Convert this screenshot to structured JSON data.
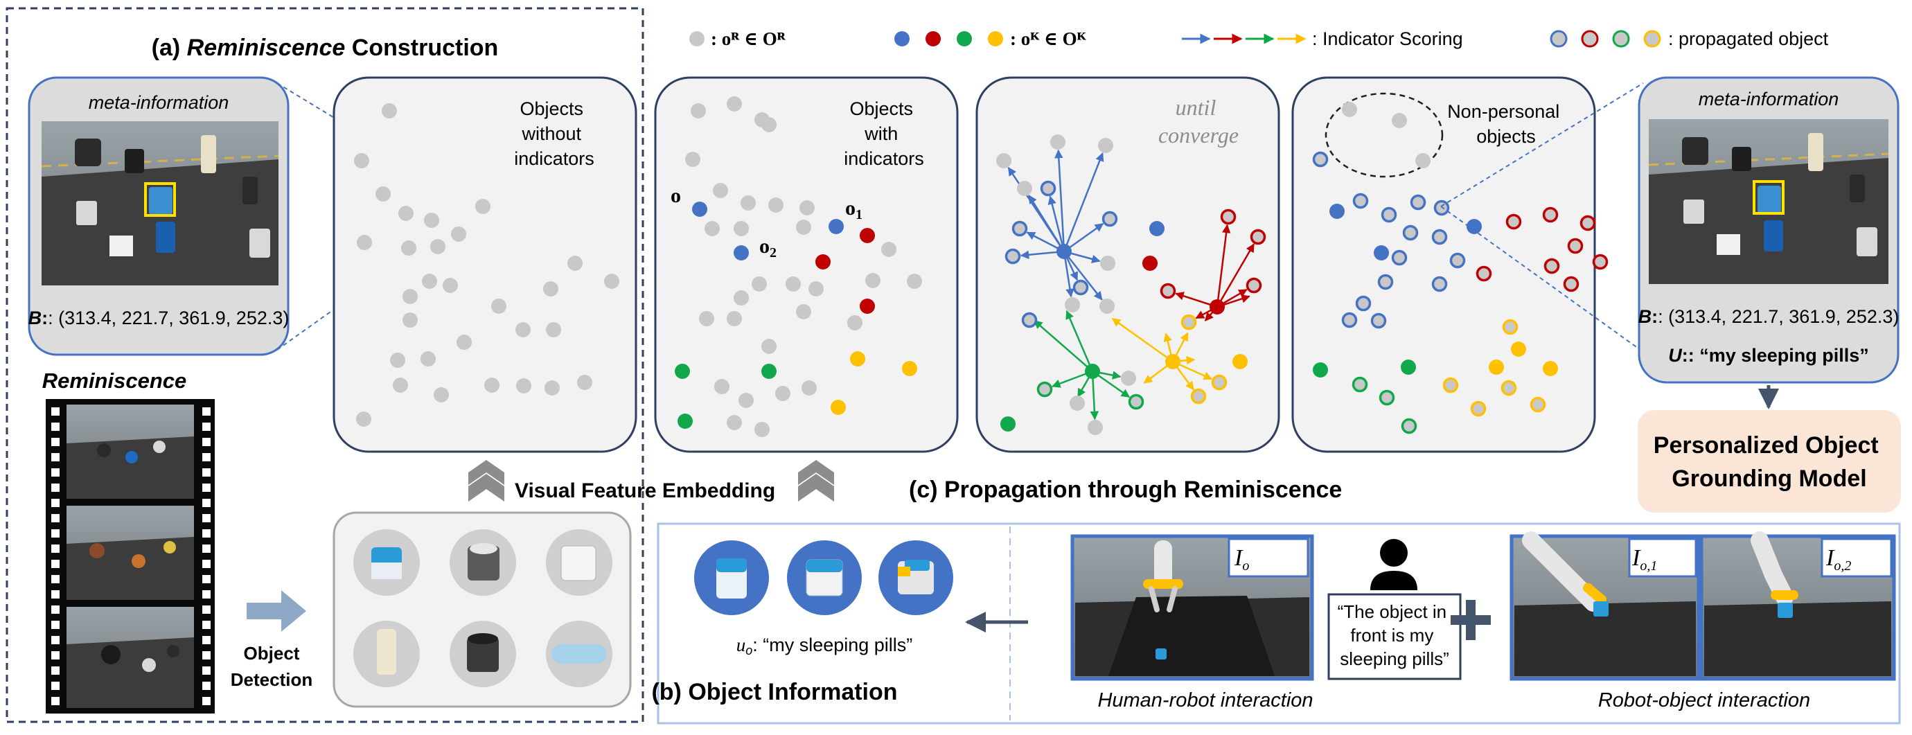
{
  "section_a": {
    "prefix": "(a) ",
    "title_em": "Reminiscence",
    "title_rest": " Construction"
  },
  "meta_left": {
    "title": "meta-information",
    "b_label": "B",
    "b_value": ": (313.4, 221.7, 361.9, 252.3)"
  },
  "meta_right": {
    "title": "meta-information",
    "b_label": "B",
    "b_value": ": (313.4, 221.7, 361.9, 252.3)",
    "u_label": "U",
    "u_value": ": “my sleeping pills”"
  },
  "reminiscence_label": "Reminiscence",
  "object_detection": [
    "Object",
    "Detection"
  ],
  "visual_feature_embedding": "Visual Feature Embedding",
  "legend": {
    "raw": ": oᴿ ∈ Oᴿ",
    "known": ": oᴷ ∈ Oᴷ",
    "scoring": ": Indicator Scoring",
    "propagated": ": propagated object"
  },
  "panels": {
    "p1": [
      "Objects",
      "without",
      "indicators"
    ],
    "p2": [
      "Objects",
      "with",
      "indicators"
    ],
    "p3": [
      "until",
      "converge"
    ],
    "p4": [
      "Non-personal",
      "objects"
    ]
  },
  "obj_labels": {
    "o": "o",
    "o1": "o",
    "o1_sub": "1",
    "o2": "o",
    "o2_sub": "2"
  },
  "model_box": [
    "Personalized Object",
    "Grounding Model"
  ],
  "section_c": "(c) Propagation through Reminiscence",
  "section_b": "(b) Object Information",
  "u_o": {
    "label": "u",
    "sub": "o",
    "text": ": “my sleeping pills”"
  },
  "speech": [
    "“The object in",
    "front is my",
    "sleeping pills”"
  ],
  "captions": {
    "human_robot": "Human-robot interaction",
    "robot_object": "Robot-object interaction"
  },
  "img_tags": {
    "io": "I",
    "io_sub": "o",
    "io1": "I",
    "io1_sub": "o,1",
    "io2": "I",
    "io2_sub": "o,2"
  },
  "colors": {
    "blue": "#4472c4",
    "red": "#c00000",
    "green": "#10a84a",
    "yellow": "#ffc000",
    "gray": "#c8c8c8",
    "panel_border": "#2f3f5f",
    "panel_fill": "#f2f2f2",
    "model_fill": "#fbe5d6"
  }
}
